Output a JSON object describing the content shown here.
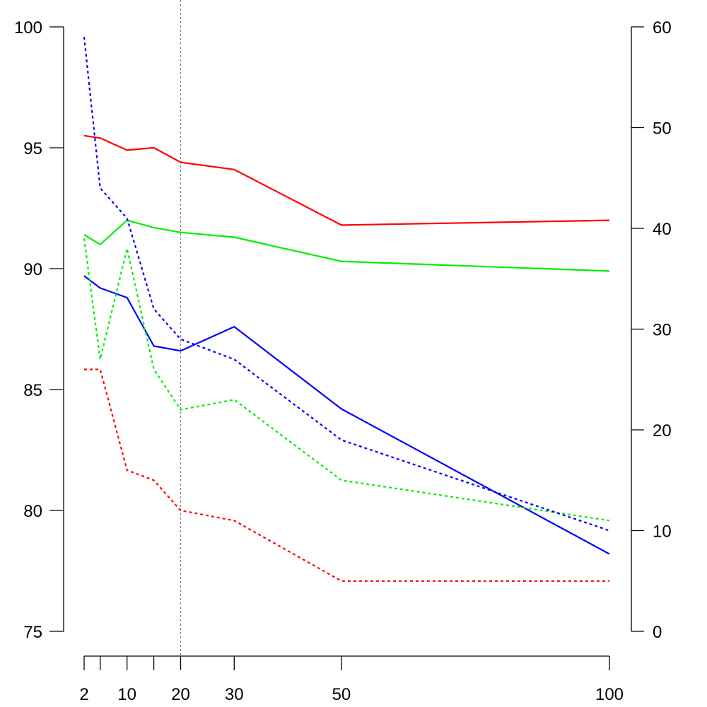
{
  "chart_data": {
    "type": "line",
    "x_ticks": [
      2,
      5,
      10,
      15,
      20,
      30,
      50,
      100
    ],
    "x_tick_labels": [
      "2",
      "",
      "10",
      "",
      "20",
      "30",
      "50",
      "100"
    ],
    "xlim": [
      2,
      100
    ],
    "left_axis": {
      "ylim": [
        75,
        100
      ],
      "ticks": [
        75,
        80,
        85,
        90,
        95,
        100
      ],
      "tick_labels": [
        "75",
        "80",
        "85",
        "90",
        "95",
        "100"
      ]
    },
    "right_axis": {
      "ylim": [
        0,
        60
      ],
      "ticks": [
        0,
        10,
        20,
        30,
        40,
        50,
        60
      ],
      "tick_labels": [
        "0",
        "10",
        "20",
        "30",
        "40",
        "50",
        "60"
      ]
    },
    "reference_line": {
      "x": 20,
      "style": "dotted",
      "color": "#808080"
    },
    "grid": false,
    "series": [
      {
        "axis": "left",
        "style": "solid",
        "color": "#ff0000",
        "x": [
          2,
          5,
          10,
          15,
          20,
          30,
          50,
          100
        ],
        "values": [
          95.5,
          95.4,
          94.9,
          95.0,
          94.4,
          94.1,
          91.8,
          92.0
        ]
      },
      {
        "axis": "left",
        "style": "solid",
        "color": "#00ee00",
        "x": [
          2,
          5,
          10,
          15,
          20,
          30,
          50,
          100
        ],
        "values": [
          91.4,
          91.0,
          92.0,
          91.7,
          91.5,
          91.3,
          90.3,
          89.9
        ]
      },
      {
        "axis": "left",
        "style": "solid",
        "color": "#0000ff",
        "x": [
          2,
          5,
          10,
          15,
          20,
          30,
          50,
          100
        ],
        "values": [
          89.7,
          89.2,
          88.8,
          86.8,
          86.6,
          87.6,
          84.2,
          78.2
        ]
      },
      {
        "axis": "right",
        "style": "dotted",
        "color": "#ff0000",
        "x": [
          2,
          5,
          10,
          15,
          20,
          30,
          50,
          100
        ],
        "values": [
          26,
          26,
          16,
          15,
          12,
          11,
          5,
          5
        ]
      },
      {
        "axis": "right",
        "style": "dotted",
        "color": "#00ee00",
        "x": [
          2,
          5,
          10,
          15,
          20,
          30,
          50,
          100
        ],
        "values": [
          39,
          27,
          38,
          26,
          22,
          23,
          15,
          11
        ]
      },
      {
        "axis": "right",
        "style": "dotted",
        "color": "#0000ff",
        "x": [
          2,
          5,
          10,
          15,
          20,
          30,
          50,
          100
        ],
        "values": [
          59,
          44,
          41,
          32,
          29,
          27,
          19,
          10
        ]
      }
    ]
  }
}
